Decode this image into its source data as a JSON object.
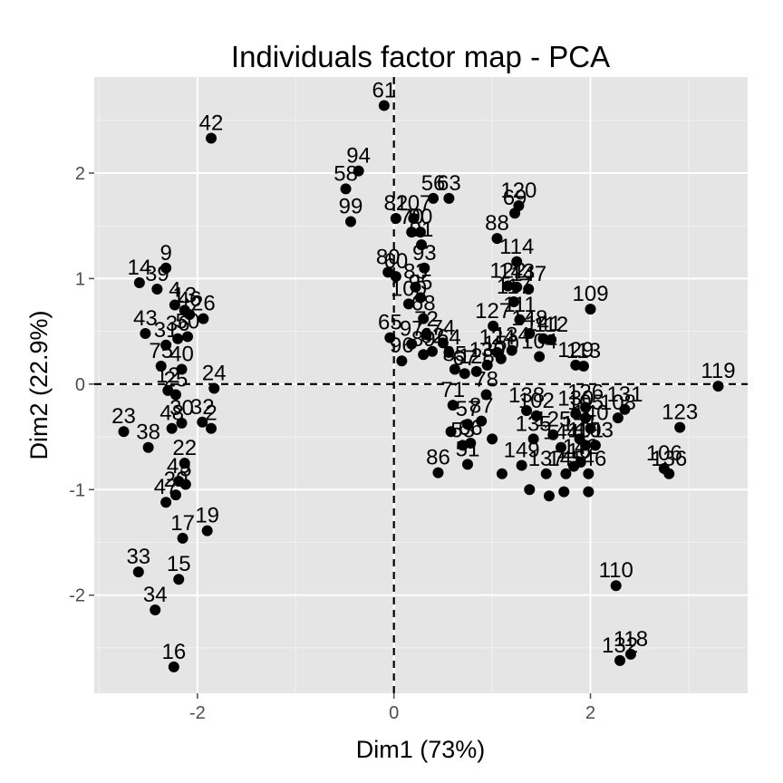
{
  "chart_data": {
    "type": "scatter",
    "title": "Individuals factor map - PCA",
    "xlabel": "Dim1 (73%)",
    "ylabel": "Dim2 (22.9%)",
    "xlim": [
      -3.05,
      3.6
    ],
    "ylim": [
      -2.93,
      2.91
    ],
    "xticks": [
      -2,
      0,
      2
    ],
    "yticks": [
      -2,
      -1,
      0,
      1,
      2
    ],
    "xtick_labels": [
      "-2",
      "0",
      "2"
    ],
    "ytick_labels": [
      "-2",
      "-1",
      "0",
      "1",
      "2"
    ],
    "grid": true,
    "reference_lines": {
      "x": 0,
      "y": 0,
      "style": "dashed"
    },
    "points": [
      {
        "label": "61",
        "x": -0.1,
        "y": 2.64
      },
      {
        "label": "42",
        "x": -1.86,
        "y": 2.33
      },
      {
        "label": "94",
        "x": -0.36,
        "y": 2.02
      },
      {
        "label": "58",
        "x": -0.49,
        "y": 1.85
      },
      {
        "label": "99",
        "x": -0.44,
        "y": 1.54
      },
      {
        "label": "56",
        "x": 0.4,
        "y": 1.76
      },
      {
        "label": "63",
        "x": 0.56,
        "y": 1.76
      },
      {
        "label": "82",
        "x": 0.02,
        "y": 1.57
      },
      {
        "label": "107",
        "x": 0.2,
        "y": 1.57
      },
      {
        "label": "120",
        "x": 1.27,
        "y": 1.69
      },
      {
        "label": "69",
        "x": 1.23,
        "y": 1.62
      },
      {
        "label": "88",
        "x": 1.05,
        "y": 1.38
      },
      {
        "label": "70",
        "x": 0.18,
        "y": 1.44
      },
      {
        "label": "90",
        "x": 0.27,
        "y": 1.44
      },
      {
        "label": "91",
        "x": 0.28,
        "y": 1.32
      },
      {
        "label": "114",
        "x": 1.25,
        "y": 1.16
      },
      {
        "label": "14",
        "x": -2.59,
        "y": 0.96
      },
      {
        "label": "9",
        "x": -2.32,
        "y": 1.1
      },
      {
        "label": "39",
        "x": -2.41,
        "y": 0.9
      },
      {
        "label": "4",
        "x": -2.23,
        "y": 0.75
      },
      {
        "label": "13",
        "x": -2.13,
        "y": 0.7
      },
      {
        "label": "46",
        "x": -2.08,
        "y": 0.66
      },
      {
        "label": "26",
        "x": -1.94,
        "y": 0.62
      },
      {
        "label": "43",
        "x": -2.53,
        "y": 0.48
      },
      {
        "label": "31",
        "x": -2.32,
        "y": 0.37
      },
      {
        "label": "36",
        "x": -2.2,
        "y": 0.43
      },
      {
        "label": "50",
        "x": -2.1,
        "y": 0.45
      },
      {
        "label": "75",
        "x": -2.37,
        "y": 0.17
      },
      {
        "label": "40",
        "x": -2.16,
        "y": 0.14
      },
      {
        "label": "12",
        "x": -2.3,
        "y": -0.06
      },
      {
        "label": "25",
        "x": -2.22,
        "y": -0.1
      },
      {
        "label": "24",
        "x": -1.83,
        "y": -0.04
      },
      {
        "label": "23",
        "x": -2.75,
        "y": -0.45
      },
      {
        "label": "38",
        "x": -2.5,
        "y": -0.6
      },
      {
        "label": "48",
        "x": -2.26,
        "y": -0.42
      },
      {
        "label": "30",
        "x": -2.16,
        "y": -0.37
      },
      {
        "label": "32",
        "x": -1.95,
        "y": -0.36
      },
      {
        "label": "2",
        "x": -1.86,
        "y": -0.42
      },
      {
        "label": "22",
        "x": -2.13,
        "y": -0.75
      },
      {
        "label": "49",
        "x": -2.19,
        "y": -0.92
      },
      {
        "label": "47",
        "x": -2.32,
        "y": -1.12
      },
      {
        "label": "20",
        "x": -2.22,
        "y": -1.05
      },
      {
        "label": "5",
        "x": -2.12,
        "y": -0.95
      },
      {
        "label": "19",
        "x": -1.9,
        "y": -1.39
      },
      {
        "label": "17",
        "x": -2.15,
        "y": -1.46
      },
      {
        "label": "15",
        "x": -2.19,
        "y": -1.85
      },
      {
        "label": "33",
        "x": -2.6,
        "y": -1.78
      },
      {
        "label": "34",
        "x": -2.43,
        "y": -2.14
      },
      {
        "label": "16",
        "x": -2.24,
        "y": -2.68
      },
      {
        "label": "80",
        "x": -0.06,
        "y": 1.06
      },
      {
        "label": "60",
        "x": 0.02,
        "y": 1.02
      },
      {
        "label": "93",
        "x": 0.31,
        "y": 1.1
      },
      {
        "label": "83",
        "x": 0.22,
        "y": 0.92
      },
      {
        "label": "95",
        "x": 0.27,
        "y": 0.82
      },
      {
        "label": "100",
        "x": 0.15,
        "y": 0.76
      },
      {
        "label": "68",
        "x": 0.3,
        "y": 0.62
      },
      {
        "label": "65",
        "x": -0.04,
        "y": 0.44
      },
      {
        "label": "97",
        "x": 0.18,
        "y": 0.38
      },
      {
        "label": "72",
        "x": 0.33,
        "y": 0.47
      },
      {
        "label": "89",
        "x": 0.3,
        "y": 0.28
      },
      {
        "label": "96",
        "x": 0.08,
        "y": 0.22
      },
      {
        "label": "62",
        "x": 0.39,
        "y": 0.31
      },
      {
        "label": "74",
        "x": 0.5,
        "y": 0.39
      },
      {
        "label": "64",
        "x": 0.56,
        "y": 0.3
      },
      {
        "label": "85",
        "x": 0.62,
        "y": 0.14
      },
      {
        "label": "67",
        "x": 0.72,
        "y": 0.1
      },
      {
        "label": "128",
        "x": 0.84,
        "y": 0.12
      },
      {
        "label": "139",
        "x": 0.95,
        "y": 0.18
      },
      {
        "label": "71",
        "x": 0.6,
        "y": -0.2
      },
      {
        "label": "78",
        "x": 0.94,
        "y": -0.1
      },
      {
        "label": "57",
        "x": 0.75,
        "y": -0.38
      },
      {
        "label": "87",
        "x": 0.89,
        "y": -0.35
      },
      {
        "label": "86",
        "x": 0.45,
        "y": -0.84
      },
      {
        "label": "51",
        "x": 0.75,
        "y": -0.76
      },
      {
        "label": "53",
        "x": 0.7,
        "y": -0.58
      },
      {
        "label": "66",
        "x": 0.78,
        "y": -0.56
      },
      {
        "label": "127",
        "x": 1.01,
        "y": 0.55
      },
      {
        "label": "124",
        "x": 1.05,
        "y": 0.3
      },
      {
        "label": "134",
        "x": 1.2,
        "y": 0.32
      },
      {
        "label": "150",
        "x": 1.09,
        "y": 0.24
      },
      {
        "label": "122",
        "x": 1.16,
        "y": 0.93
      },
      {
        "label": "143",
        "x": 1.25,
        "y": 0.92
      },
      {
        "label": "147",
        "x": 1.37,
        "y": 0.9
      },
      {
        "label": "117",
        "x": 1.22,
        "y": 0.78
      },
      {
        "label": "111",
        "x": 1.28,
        "y": 0.61
      },
      {
        "label": "148",
        "x": 1.38,
        "y": 0.48
      },
      {
        "label": "141",
        "x": 1.52,
        "y": 0.43
      },
      {
        "label": "112",
        "x": 1.6,
        "y": 0.42
      },
      {
        "label": "104",
        "x": 1.48,
        "y": 0.26
      },
      {
        "label": "129",
        "x": 1.85,
        "y": 0.18
      },
      {
        "label": "113",
        "x": 1.93,
        "y": 0.17
      },
      {
        "label": "109",
        "x": 2.0,
        "y": 0.71
      },
      {
        "label": "119",
        "x": 3.3,
        "y": -0.02
      },
      {
        "label": "131",
        "x": 2.35,
        "y": -0.24
      },
      {
        "label": "108",
        "x": 2.28,
        "y": -0.32
      },
      {
        "label": "123",
        "x": 2.91,
        "y": -0.41
      },
      {
        "label": "126",
        "x": 1.95,
        "y": -0.22
      },
      {
        "label": "130",
        "x": 1.85,
        "y": -0.28
      },
      {
        "label": "105",
        "x": 1.95,
        "y": -0.32
      },
      {
        "label": "101",
        "x": 1.95,
        "y": -0.58
      },
      {
        "label": "103",
        "x": 2.05,
        "y": -0.58
      },
      {
        "label": "125",
        "x": 1.62,
        "y": -0.48
      },
      {
        "label": "144",
        "x": 1.7,
        "y": -0.6
      },
      {
        "label": "121",
        "x": 1.89,
        "y": -0.52
      },
      {
        "label": "140",
        "x": 2.0,
        "y": -0.42
      },
      {
        "label": "106",
        "x": 2.75,
        "y": -0.8
      },
      {
        "label": "136",
        "x": 2.8,
        "y": -0.85
      },
      {
        "label": "149",
        "x": 1.3,
        "y": -0.77
      },
      {
        "label": "137",
        "x": 1.55,
        "y": -0.85
      },
      {
        "label": "145",
        "x": 1.75,
        "y": -0.85
      },
      {
        "label": "116",
        "x": 1.83,
        "y": -0.78
      },
      {
        "label": "142",
        "x": 1.9,
        "y": -0.74
      },
      {
        "label": "146",
        "x": 1.98,
        "y": -0.85
      },
      {
        "label": "138",
        "x": 1.35,
        "y": -0.25
      },
      {
        "label": "102",
        "x": 1.45,
        "y": -0.3
      },
      {
        "label": "135",
        "x": 1.42,
        "y": -0.52
      },
      {
        "label": "110",
        "x": 2.26,
        "y": -1.91
      },
      {
        "label": "118",
        "x": 2.41,
        "y": -2.56
      },
      {
        "label": "132",
        "x": 2.3,
        "y": -2.62
      },
      {
        "label": "",
        "x": 1.58,
        "y": -1.06
      },
      {
        "label": "",
        "x": 1.73,
        "y": -1.02
      },
      {
        "label": "",
        "x": 1.98,
        "y": -1.02
      },
      {
        "label": "",
        "x": 1.38,
        "y": -1.0
      },
      {
        "label": "",
        "x": 1.1,
        "y": -0.85
      },
      {
        "label": "",
        "x": 0.58,
        "y": -0.45
      },
      {
        "label": "",
        "x": 1.0,
        "y": -0.52
      }
    ]
  }
}
